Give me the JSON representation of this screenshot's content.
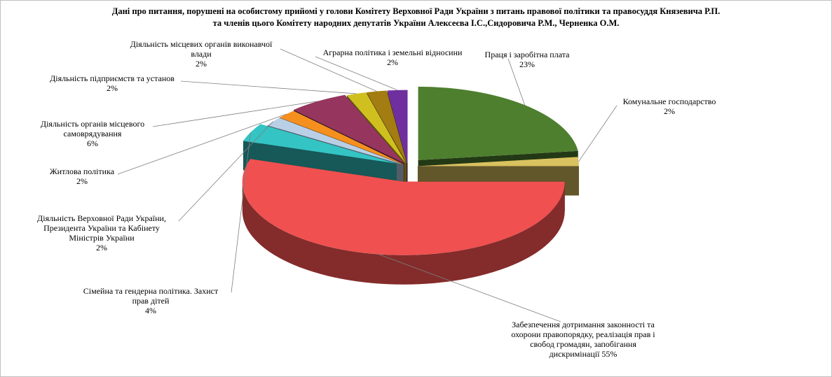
{
  "chart_data": {
    "type": "pie",
    "title": "Дані про питання, порушені на особистому прийомі у голови Комітету Верховної Ради України з питань правової політики та правосуддя Князевича Р.П. та членів цього Комітету народних депутатів України Алексеєва І.С.,Сидоровича Р.М., Черненка О.М.",
    "title_lines": [
      "Дані  про  питання,  порушені  на  особистому  прийомі  у  голови  Комітету  Верховної  Ради  України  з  питань  правової  політики  та  правосуддя  Князевича  Р.П.",
      "та  членів  цього  Комітету  народних  депутатів  України  Алексеєва  І.С.,Сидоровича  Р.М.,  Черненка  О.М."
    ],
    "slices": [
      {
        "label": "Праця і заробітна плата",
        "label_lines": [
          "Праця і заробітна плата"
        ],
        "value": 23,
        "value_text": "23%",
        "color": "#4e7f2f"
      },
      {
        "label": "Комунальне господарство",
        "label_lines": [
          "Комунальне  господарство"
        ],
        "value": 2,
        "value_text": "2%",
        "color": "#d9c25f"
      },
      {
        "label": "Забезпечення дотримання законності та охорони правопорядку, реалізація прав і свобод громадян, запобігання дискримінації",
        "label_lines": [
          "Забезпечення дотримання законності та",
          "охорони правопорядку, реалізація прав і",
          "свобод громадян, запобігання",
          "дискримінації 55%"
        ],
        "value": 55,
        "value_text": "55%",
        "color": "#f0504f"
      },
      {
        "label": "Сімейна та гендерна політика. Захист прав дітей",
        "label_lines": [
          "Сімейна та гендерна політика. Захист",
          "прав дітей"
        ],
        "value": 4,
        "value_text": "4%",
        "color": "#34c4c4"
      },
      {
        "label": "Діяльність Верховної Ради України, Президента України та Кабінету Міністрів України",
        "label_lines": [
          "Діяльність Верховної Ради України,",
          "Президента України та Кабінету",
          "Міністрів України"
        ],
        "value": 2,
        "value_text": "2%",
        "color": "#b9cfe6"
      },
      {
        "label": "Житлова політика",
        "label_lines": [
          "Житлова політика"
        ],
        "value": 2,
        "value_text": "2%",
        "color": "#f5901e"
      },
      {
        "label": "Діяльність органів місцевого самоврядування",
        "label_lines": [
          "Діяльність органів місцевого",
          "самоврядування"
        ],
        "value": 6,
        "value_text": "6%",
        "color": "#96355e"
      },
      {
        "label": "Діяльність підприємств та установ",
        "label_lines": [
          "Діяльність підприємств та установ"
        ],
        "value": 2,
        "value_text": "2%",
        "color": "#cfc01f"
      },
      {
        "label": "Діяльність місцевих органів виконавчої влади",
        "label_lines": [
          "Діяльність місцевих органів виконавчої",
          "влади"
        ],
        "value": 2,
        "value_text": "2%",
        "color": "#a37c12"
      },
      {
        "label": "Аграрна політика і земельні відносини",
        "label_lines": [
          "Аграрна політика і земельні відносини"
        ],
        "value": 2,
        "value_text": "2%",
        "color": "#6f2f9e"
      }
    ],
    "legend": "none",
    "style": "3d-exploded"
  }
}
